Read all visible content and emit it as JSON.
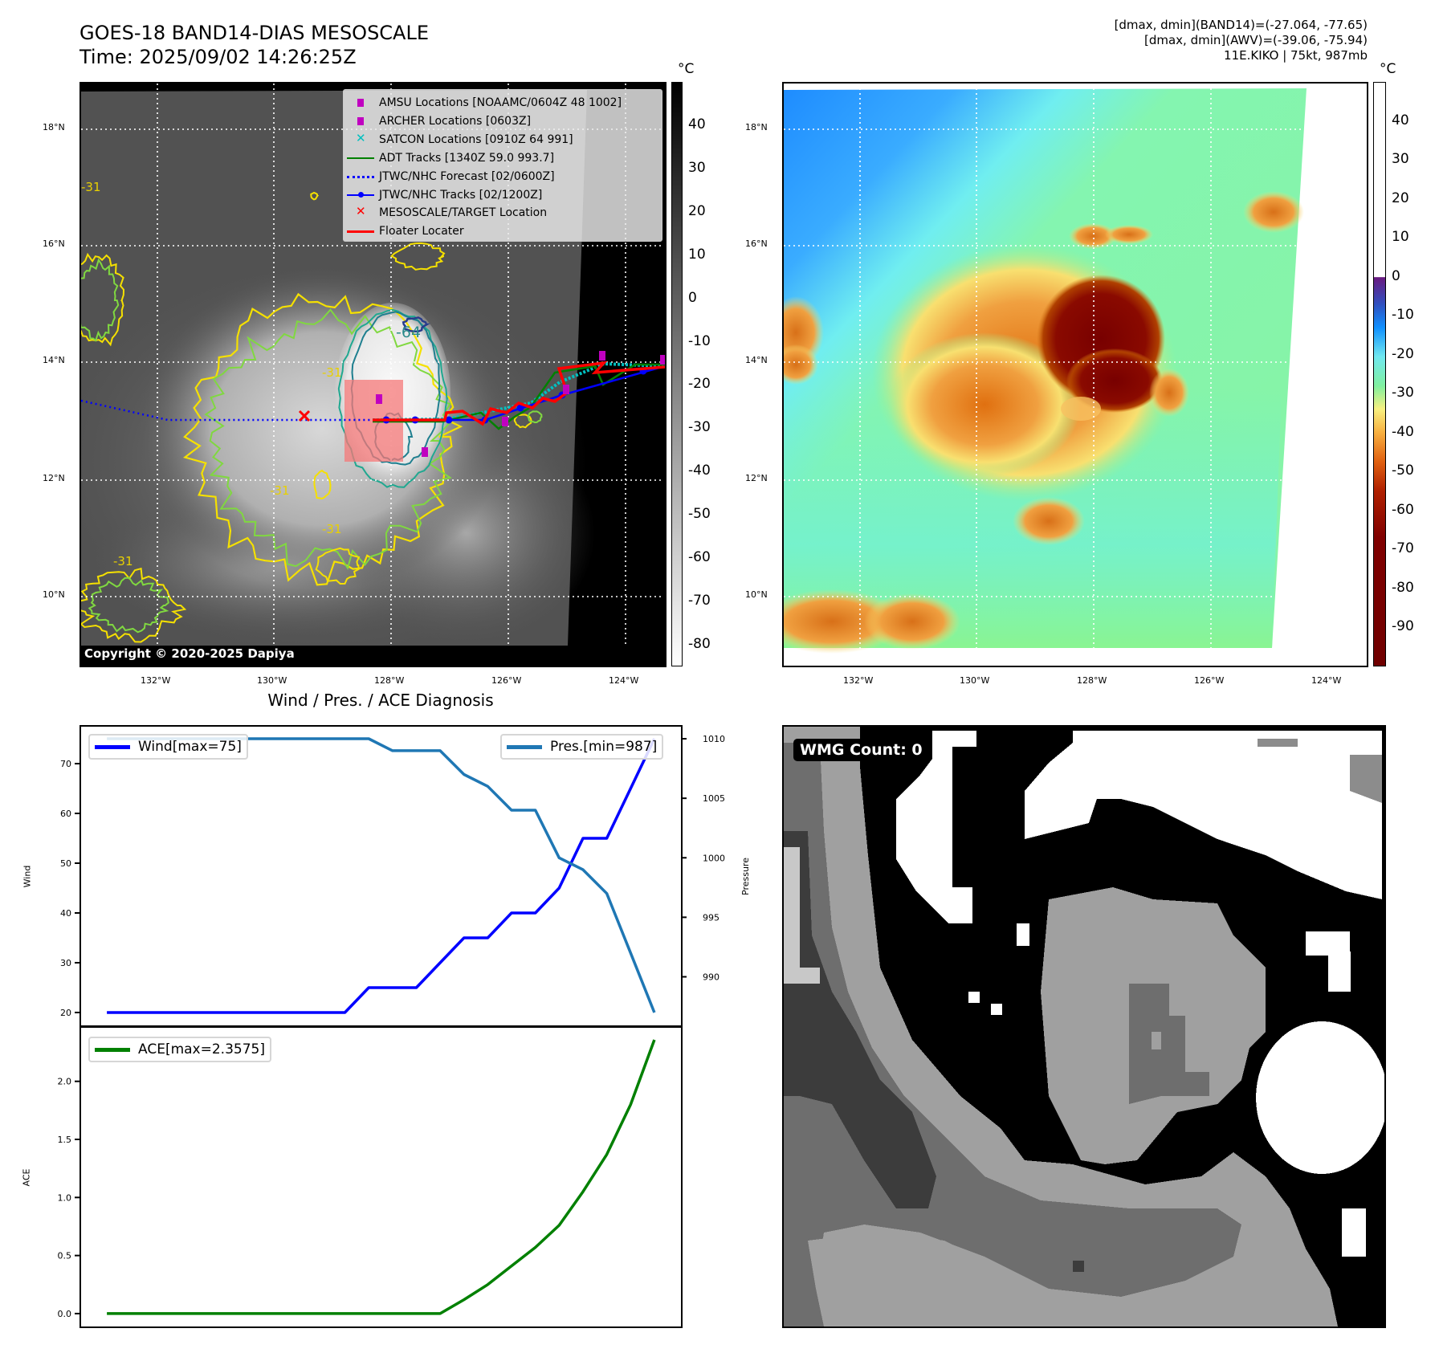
{
  "header": {
    "title": "GOES-18 BAND14-DIAS MESOSCALE",
    "time": "Time: 2025/09/02 14:26:25Z",
    "stats": [
      "[dmax, dmin](BAND14)=(-27.064, -77.65)",
      "[dmax, dmin](AWV)=(-39.06, -75.94)",
      "11E.KIKO | 75kt, 987mb"
    ]
  },
  "maps": {
    "lat_labels": [
      "18°N",
      "16°N",
      "14°N",
      "12°N",
      "10°N"
    ],
    "lon_labels": [
      "132°W",
      "130°W",
      "128°W",
      "126°W",
      "124°W"
    ],
    "unit": "°C",
    "band14_colorbar": {
      "ticks": [
        "40",
        "30",
        "20",
        "10",
        "0",
        "-10",
        "-20",
        "-30",
        "-40",
        "-50",
        "-60",
        "-70",
        "-80"
      ],
      "range": [
        50,
        -85
      ]
    },
    "awv_colorbar": {
      "ticks": [
        "40",
        "30",
        "20",
        "10",
        "0",
        "-10",
        "-20",
        "-30",
        "-40",
        "-50",
        "-60",
        "-70",
        "-80",
        "-90"
      ],
      "range": [
        50,
        -100
      ]
    },
    "contour_labels": {
      "inner": "-64",
      "outer": "-31"
    },
    "copyright": "Copyright © 2020-2025 Dapiya",
    "legend": [
      {
        "label": "AMSU Locations [NOAAMC/0604Z 48 1002]",
        "color": "#c000c0",
        "marker": "square"
      },
      {
        "label": "ARCHER Locations [0603Z]",
        "color": "#c000c0",
        "marker": "square"
      },
      {
        "label": "SATCON Locations [0910Z 64 991]",
        "color": "#00bfbf",
        "marker": "x"
      },
      {
        "label": "ADT Tracks [1340Z 59.0 993.7]",
        "color": "#008000",
        "marker": "line"
      },
      {
        "label": "JTWC/NHC Forecast [02/0600Z]",
        "color": "#0000ff",
        "marker": "dotted"
      },
      {
        "label": "JTWC/NHC Tracks [02/1200Z]",
        "color": "#0000ff",
        "marker": "line-dot"
      },
      {
        "label": "MESOSCALE/TARGET Location",
        "color": "#ff0000",
        "marker": "x"
      },
      {
        "label": "Floater Locater",
        "color": "#ff0000",
        "marker": "line"
      }
    ]
  },
  "wmg": {
    "label": "WMG Count: 0"
  },
  "chart_data": {
    "type": "line",
    "title": "Wind / Pres. / ACE Diagnosis",
    "x": [
      0,
      1,
      2,
      3,
      4,
      5,
      6,
      7,
      8,
      9,
      10,
      11,
      12,
      13,
      14,
      15,
      16,
      17,
      18,
      19,
      20,
      21,
      22,
      23
    ],
    "xlim": [
      -1.15,
      24.15
    ],
    "panels": [
      {
        "ylabel": "Wind",
        "y2label": "Pressure",
        "ylim": [
          17.25,
          77.75
        ],
        "y2lim": [
          985.85,
          1011.15
        ],
        "yticks": [
          20,
          30,
          40,
          50,
          60,
          70
        ],
        "y2ticks": [
          990,
          995,
          1000,
          1005,
          1010
        ],
        "series": [
          {
            "name": "Wind[max=75]",
            "axis": "left",
            "color": "#0000ff",
            "values": [
              20,
              20,
              20,
              20,
              20,
              20,
              20,
              20,
              20,
              20,
              20,
              25,
              25,
              25,
              30,
              35,
              35,
              40,
              40,
              45,
              55,
              55,
              65,
              75
            ]
          },
          {
            "name": "Pres.[min=987]",
            "axis": "right",
            "color": "#1f77b4",
            "values": [
              1010,
              1010,
              1010,
              1010,
              1010,
              1010,
              1010,
              1010,
              1010,
              1010,
              1010,
              1010,
              1009,
              1009,
              1009,
              1007,
              1006,
              1004,
              1004,
              1000,
              999,
              997,
              992,
              987
            ]
          }
        ]
      },
      {
        "ylabel": "ACE",
        "ylim": [
          -0.118,
          2.475
        ],
        "yticks": [
          "0.0",
          "0.5",
          "1.0",
          "1.5",
          "2.0"
        ],
        "series": [
          {
            "name": "ACE[max=2.3575]",
            "axis": "left",
            "color": "#008000",
            "values": [
              0,
              0,
              0,
              0,
              0,
              0,
              0,
              0,
              0,
              0,
              0,
              0,
              0,
              0,
              0,
              0.12,
              0.25,
              0.41,
              0.57,
              0.76,
              1.05,
              1.37,
              1.8,
              2.3575
            ]
          }
        ]
      }
    ]
  }
}
